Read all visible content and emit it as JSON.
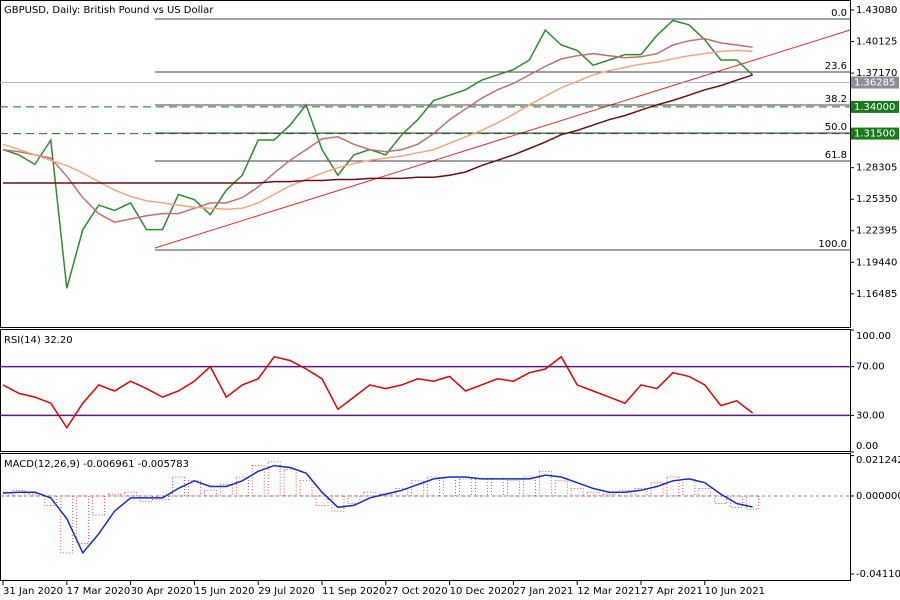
{
  "chart_data": [
    {
      "type": "line",
      "title": "GBPUSD, Daily: British Pound vs US Dollar",
      "categories": [
        "31 Jan 2020",
        null,
        null,
        null,
        "17 Mar 2020",
        null,
        null,
        null,
        "30 Apr 2020",
        null,
        null,
        null,
        "15 Jun 2020",
        null,
        null,
        null,
        "29 Jul 2020",
        null,
        null,
        null,
        "11 Sep 2020",
        null,
        null,
        null,
        "27 Oct 2020",
        null,
        null,
        null,
        "10 Dec 2020",
        null,
        null,
        null,
        "27 Jan 2021",
        null,
        null,
        null,
        "12 Mar 2021",
        null,
        null,
        null,
        "27 Apr 2021",
        null,
        null,
        null,
        "10 Jun 2021",
        null,
        null,
        null
      ],
      "series": [
        {
          "color": "#2e8b2e",
          "values": [
            1.3,
            1.295,
            1.286,
            1.309,
            1.17,
            1.225,
            1.248,
            1.243,
            1.25,
            1.225,
            1.225,
            1.258,
            1.253,
            1.239,
            1.262,
            1.276,
            1.309,
            1.309,
            1.323,
            1.342,
            1.3,
            1.276,
            1.295,
            1.3,
            1.295,
            1.314,
            1.328,
            1.346,
            1.351,
            1.356,
            1.365,
            1.37,
            1.375,
            1.384,
            1.412,
            1.398,
            1.393,
            1.379,
            1.384,
            1.389,
            1.389,
            1.407,
            1.421,
            1.417,
            1.403,
            1.384,
            1.384,
            1.37
          ]
        },
        {
          "color": "#c07070",
          "values": [
            1.3,
            1.298,
            1.295,
            1.292,
            1.275,
            1.255,
            1.24,
            1.232,
            1.235,
            1.238,
            1.24,
            1.24,
            1.245,
            1.25,
            1.25,
            1.255,
            1.265,
            1.278,
            1.29,
            1.3,
            1.31,
            1.312,
            1.305,
            1.3,
            1.298,
            1.3,
            1.305,
            1.315,
            1.328,
            1.338,
            1.348,
            1.356,
            1.362,
            1.37,
            1.378,
            1.385,
            1.388,
            1.39,
            1.388,
            1.386,
            1.387,
            1.39,
            1.398,
            1.402,
            1.404,
            1.4,
            1.398,
            1.396
          ]
        },
        {
          "color": "#f4a582",
          "values": [
            1.305,
            1.3,
            1.295,
            1.29,
            1.285,
            1.278,
            1.27,
            1.262,
            1.256,
            1.252,
            1.25,
            1.248,
            1.246,
            1.245,
            1.244,
            1.245,
            1.25,
            1.258,
            1.266,
            1.272,
            1.278,
            1.283,
            1.287,
            1.29,
            1.292,
            1.294,
            1.297,
            1.3,
            1.306,
            1.312,
            1.318,
            1.325,
            1.333,
            1.342,
            1.35,
            1.358,
            1.364,
            1.37,
            1.374,
            1.377,
            1.38,
            1.382,
            1.385,
            1.388,
            1.39,
            1.392,
            1.393,
            1.392
          ]
        },
        {
          "color": "#6b1010",
          "values": [
            1.2687,
            1.2687,
            1.2687,
            1.2687,
            1.2687,
            1.2687,
            1.2687,
            1.2687,
            1.2687,
            1.2687,
            1.2687,
            1.2687,
            1.2687,
            1.2687,
            1.2687,
            1.2687,
            1.2687,
            1.27,
            1.27,
            1.271,
            1.271,
            1.272,
            1.272,
            1.273,
            1.273,
            1.273,
            1.274,
            1.274,
            1.276,
            1.279,
            1.285,
            1.29,
            1.295,
            1.301,
            1.307,
            1.314,
            1.318,
            1.323,
            1.328,
            1.332,
            1.337,
            1.342,
            1.346,
            1.351,
            1.356,
            1.36,
            1.365,
            1.37
          ]
        }
      ],
      "ylim": [
        1.1328,
        1.4402
      ],
      "yticks": [
        {
          "value": 1.4308,
          "label": "1.43080"
        },
        {
          "value": 1.40125,
          "label": "1.40125"
        },
        {
          "value": 1.3717,
          "label": "1.37170"
        },
        {
          "value": 1.28305,
          "label": "1.28305"
        },
        {
          "value": 1.2535,
          "label": "1.25350"
        },
        {
          "value": 1.22395,
          "label": "1.22395"
        },
        {
          "value": 1.1944,
          "label": "1.19440"
        },
        {
          "value": 1.16485,
          "label": "1.16485"
        }
      ],
      "fibonacci": [
        {
          "value": 1.4224,
          "label": "0.0"
        },
        {
          "value": 1.3727,
          "label": "23.6"
        },
        {
          "value": 1.3418,
          "label": "38.2"
        },
        {
          "value": 1.3155,
          "label": "50.0"
        },
        {
          "value": 1.2893,
          "label": "61.8"
        },
        {
          "value": 1.2059,
          "label": "100.0"
        }
      ],
      "levels": [
        {
          "value": 1.34,
          "label": "1.34000"
        },
        {
          "value": 1.315,
          "label": "1.31500"
        }
      ],
      "level_color": "#1a7a1a",
      "current": 1.36285
    },
    {
      "type": "line",
      "title": "RSI(14) 32.20",
      "series": [
        {
          "color": "#e00000",
          "values": [
            55,
            48,
            45,
            40,
            20,
            40,
            55,
            50,
            58,
            52,
            45,
            50,
            58,
            70,
            45,
            55,
            60,
            78,
            75,
            68,
            60,
            35,
            45,
            55,
            52,
            55,
            60,
            58,
            62,
            50,
            55,
            60,
            58,
            65,
            68,
            78,
            55,
            50,
            45,
            40,
            55,
            52,
            65,
            62,
            55,
            38,
            42,
            32
          ]
        }
      ],
      "ylim": [
        0,
        100
      ],
      "yticks": [
        {
          "value": 100,
          "label": "100.00"
        },
        {
          "value": 70,
          "label": "70.00"
        },
        {
          "value": 30,
          "label": "30.00"
        },
        {
          "value": 0,
          "label": "0.00"
        }
      ],
      "hlines": [
        70,
        30
      ],
      "hline_color": "#5b1a8a"
    },
    {
      "type": "macd",
      "title": "MACD(12,26,9) -0.006961 -0.005783",
      "series": [
        {
          "color": "#e02020",
          "values": [
            0.002,
            0.003,
            0.001,
            -0.005,
            -0.03,
            -0.025,
            -0.01,
            0.001,
            0.002,
            -0.003,
            -0.002,
            0.01,
            0.008,
            0.003,
            0.006,
            0.01,
            0.016,
            0.018,
            0.014,
            0.008,
            -0.005,
            -0.008,
            -0.004,
            0.002,
            0.001,
            0.004,
            0.008,
            0.01,
            0.01,
            0.009,
            0.009,
            0.009,
            0.008,
            0.01,
            0.013,
            0.008,
            0.004,
            0.002,
            0.001,
            0.003,
            0.004,
            0.007,
            0.01,
            0.009,
            0.004,
            -0.004,
            -0.006,
            -0.007
          ]
        },
        {
          "color": "#1030c0",
          "values": [
            0.0015,
            0.002,
            0.002,
            -0.001,
            -0.012,
            -0.03,
            -0.02,
            -0.008,
            -0.001,
            -0.001,
            -0.001,
            0.004,
            0.008,
            0.005,
            0.005,
            0.008,
            0.013,
            0.016,
            0.015,
            0.012,
            0.002,
            -0.006,
            -0.005,
            -0.001,
            0.001,
            0.003,
            0.006,
            0.009,
            0.01,
            0.01,
            0.009,
            0.009,
            0.009,
            0.009,
            0.011,
            0.01,
            0.007,
            0.004,
            0.002,
            0.002,
            0.003,
            0.005,
            0.008,
            0.009,
            0.007,
            0.001,
            -0.004,
            -0.0058
          ]
        }
      ],
      "ylim": [
        -0.0448,
        0.0221
      ],
      "yticks": [
        {
          "value": 0.021242,
          "label": "0.021242"
        },
        {
          "value": 0,
          "label": "0.000000"
        },
        {
          "value": -0.041104,
          "label": "-0.041104"
        }
      ]
    }
  ]
}
